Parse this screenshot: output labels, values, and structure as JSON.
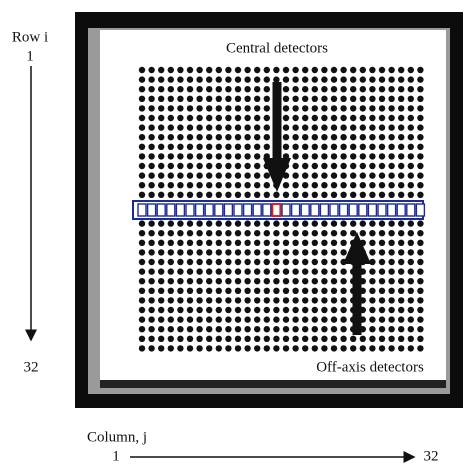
{
  "figure": {
    "row_axis": {
      "title": "Row i",
      "start": "1",
      "end": "32"
    },
    "column_axis": {
      "title": "Column, j",
      "start": "1",
      "end": "32"
    },
    "annotations": {
      "central": "Central detectors",
      "off_axis": "Off-axis detectors"
    }
  }
}
